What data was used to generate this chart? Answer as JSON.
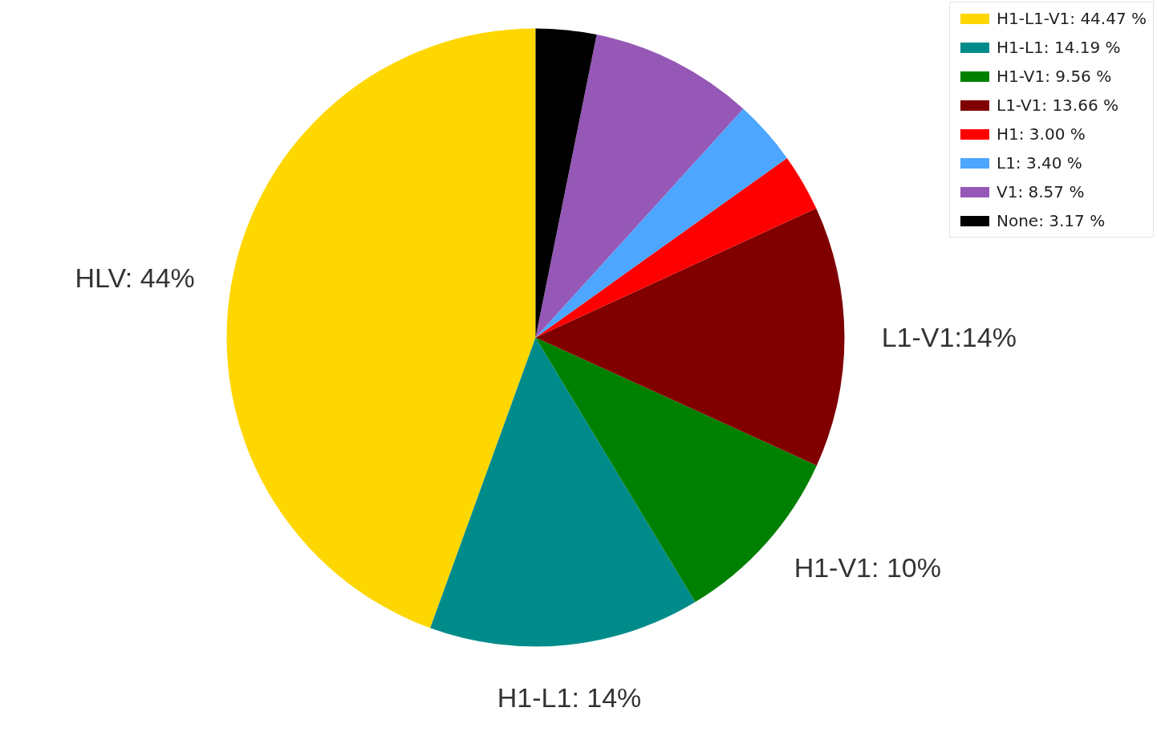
{
  "chart_data": {
    "type": "pie",
    "categories": [
      "H1-L1-V1: 44.47 %",
      "H1-L1: 14.19 %",
      "H1-V1: 9.56 %",
      "L1-V1: 13.66 %",
      "H1: 3.00 %",
      "L1: 3.40 %",
      "V1: 8.57 %",
      "None: 3.17 %"
    ],
    "values": [
      44.47,
      14.19,
      9.56,
      13.66,
      3.0,
      3.4,
      8.57,
      3.17
    ],
    "colors": [
      "#ffd700",
      "#008b8b",
      "#008000",
      "#800000",
      "#ff0000",
      "#4da6ff",
      "#9558b7",
      "#000000"
    ],
    "annotations": [
      "HLV: 44%",
      "H1-L1: 14%",
      "H1-V1: 10%",
      "L1-V1:14%"
    ],
    "legend": "top right"
  }
}
